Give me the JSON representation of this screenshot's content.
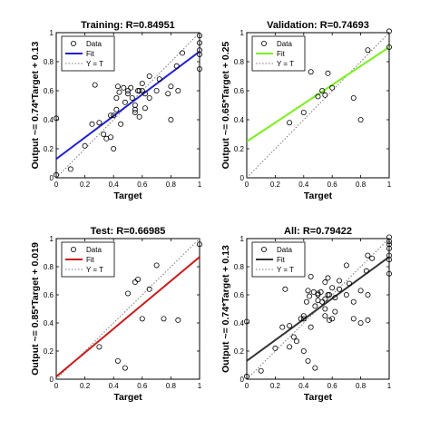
{
  "chart_data": [
    {
      "type": "scatter",
      "title": "Training: R=0.84951",
      "xlabel": "Target",
      "ylabel": "Output ~= 0.74*Target + 0.13",
      "xlim": [
        0,
        1
      ],
      "ylim": [
        0,
        1
      ],
      "xticks": [
        "0",
        "0.2",
        "0.4",
        "0.6",
        "0.8",
        "1"
      ],
      "yticks": [
        "0",
        "0.2",
        "0.4",
        "0.6",
        "0.8",
        "1"
      ],
      "grid": false,
      "legend_position": "top-left",
      "fit": {
        "slope": 0.74,
        "intercept": 0.13,
        "color": "#1f1fd0"
      },
      "legend": [
        {
          "label": "Data",
          "kind": "marker"
        },
        {
          "label": "Fit",
          "kind": "fit"
        },
        {
          "label": "Y = T",
          "kind": "identity"
        }
      ],
      "points": [
        [
          0.0,
          0.41
        ],
        [
          0.0,
          0.02
        ],
        [
          0.1,
          0.06
        ],
        [
          0.2,
          0.22
        ],
        [
          0.25,
          0.37
        ],
        [
          0.27,
          0.64
        ],
        [
          0.3,
          0.38
        ],
        [
          0.33,
          0.3
        ],
        [
          0.35,
          0.27
        ],
        [
          0.38,
          0.43
        ],
        [
          0.38,
          0.28
        ],
        [
          0.4,
          0.2
        ],
        [
          0.4,
          0.43
        ],
        [
          0.42,
          0.47
        ],
        [
          0.42,
          0.55
        ],
        [
          0.43,
          0.63
        ],
        [
          0.44,
          0.59
        ],
        [
          0.45,
          0.37
        ],
        [
          0.47,
          0.62
        ],
        [
          0.48,
          0.52
        ],
        [
          0.5,
          0.58
        ],
        [
          0.5,
          0.6
        ],
        [
          0.52,
          0.62
        ],
        [
          0.53,
          0.55
        ],
        [
          0.55,
          0.45
        ],
        [
          0.55,
          0.47
        ],
        [
          0.55,
          0.5
        ],
        [
          0.57,
          0.6
        ],
        [
          0.58,
          0.42
        ],
        [
          0.58,
          0.6
        ],
        [
          0.6,
          0.65
        ],
        [
          0.6,
          0.6
        ],
        [
          0.62,
          0.58
        ],
        [
          0.62,
          0.48
        ],
        [
          0.65,
          0.7
        ],
        [
          0.65,
          0.55
        ],
        [
          0.7,
          0.6
        ],
        [
          0.72,
          0.68
        ],
        [
          0.78,
          0.58
        ],
        [
          0.8,
          0.4
        ],
        [
          0.8,
          0.63
        ],
        [
          0.84,
          0.77
        ],
        [
          0.85,
          0.6
        ],
        [
          0.88,
          0.86
        ],
        [
          1.0,
          0.75
        ],
        [
          1.0,
          0.85
        ],
        [
          1.0,
          0.88
        ],
        [
          1.0,
          0.93
        ],
        [
          1.0,
          0.98
        ]
      ]
    },
    {
      "type": "scatter",
      "title": "Validation: R=0.74693",
      "xlabel": "Target",
      "ylabel": "Output ~= 0.65*Target + 0.25",
      "xlim": [
        0,
        1
      ],
      "ylim": [
        0,
        1
      ],
      "xticks": [
        "0",
        "0.2",
        "0.4",
        "0.6",
        "0.8",
        "1"
      ],
      "yticks": [
        "0",
        "0.2",
        "0.4",
        "0.6",
        "0.8",
        "1"
      ],
      "grid": false,
      "legend_position": "top-left",
      "fit": {
        "slope": 0.65,
        "intercept": 0.25,
        "color": "#7bef1e"
      },
      "legend": [
        {
          "label": "Data",
          "kind": "marker"
        },
        {
          "label": "Fit",
          "kind": "fit"
        },
        {
          "label": "Y = T",
          "kind": "identity"
        }
      ],
      "points": [
        [
          0.3,
          0.38
        ],
        [
          0.4,
          0.45
        ],
        [
          0.45,
          0.73
        ],
        [
          0.5,
          0.56
        ],
        [
          0.53,
          0.6
        ],
        [
          0.55,
          0.57
        ],
        [
          0.57,
          0.72
        ],
        [
          0.6,
          0.62
        ],
        [
          0.75,
          0.55
        ],
        [
          0.8,
          0.4
        ],
        [
          0.85,
          0.88
        ],
        [
          1.0,
          0.9
        ],
        [
          1.0,
          1.01
        ]
      ]
    },
    {
      "type": "scatter",
      "title": "Test: R=0.66985",
      "xlabel": "Target",
      "ylabel": "Output ~= 0.85*Target + 0.019",
      "xlim": [
        0,
        1
      ],
      "ylim": [
        0,
        1
      ],
      "xticks": [
        "0",
        "0.2",
        "0.4",
        "0.6",
        "0.8",
        "1"
      ],
      "yticks": [
        "0",
        "0.2",
        "0.4",
        "0.6",
        "0.8",
        "1"
      ],
      "grid": false,
      "legend_position": "top-left",
      "fit": {
        "slope": 0.85,
        "intercept": 0.019,
        "color": "#c81e1e"
      },
      "legend": [
        {
          "label": "Data",
          "kind": "marker"
        },
        {
          "label": "Fit",
          "kind": "fit"
        },
        {
          "label": "Y = T",
          "kind": "identity"
        }
      ],
      "points": [
        [
          0.3,
          0.23
        ],
        [
          0.43,
          0.13
        ],
        [
          0.48,
          0.08
        ],
        [
          0.5,
          0.61
        ],
        [
          0.55,
          0.69
        ],
        [
          0.57,
          0.71
        ],
        [
          0.6,
          0.43
        ],
        [
          0.65,
          0.64
        ],
        [
          0.7,
          0.81
        ],
        [
          0.75,
          0.43
        ],
        [
          0.85,
          0.42
        ],
        [
          1.0,
          0.96
        ]
      ]
    },
    {
      "type": "scatter",
      "title": "All: R=0.79422",
      "xlabel": "Target",
      "ylabel": "Output ~= 0.74*Target + 0.13",
      "xlim": [
        0,
        1
      ],
      "ylim": [
        0,
        1
      ],
      "xticks": [
        "0",
        "0.2",
        "0.4",
        "0.6",
        "0.8",
        "1"
      ],
      "yticks": [
        "0",
        "0.2",
        "0.4",
        "0.6",
        "0.8",
        "1"
      ],
      "grid": false,
      "legend_position": "top-left",
      "fit": {
        "slope": 0.74,
        "intercept": 0.13,
        "color": "#333333"
      },
      "legend": [
        {
          "label": "Data",
          "kind": "marker"
        },
        {
          "label": "Fit",
          "kind": "fit"
        },
        {
          "label": "Y = T",
          "kind": "identity"
        }
      ],
      "points": [
        [
          0.0,
          0.41
        ],
        [
          0.0,
          0.02
        ],
        [
          0.1,
          0.06
        ],
        [
          0.2,
          0.22
        ],
        [
          0.25,
          0.37
        ],
        [
          0.27,
          0.64
        ],
        [
          0.3,
          0.38
        ],
        [
          0.3,
          0.23
        ],
        [
          0.33,
          0.3
        ],
        [
          0.35,
          0.27
        ],
        [
          0.38,
          0.43
        ],
        [
          0.4,
          0.2
        ],
        [
          0.4,
          0.43
        ],
        [
          0.4,
          0.45
        ],
        [
          0.42,
          0.55
        ],
        [
          0.43,
          0.63
        ],
        [
          0.43,
          0.13
        ],
        [
          0.44,
          0.59
        ],
        [
          0.45,
          0.37
        ],
        [
          0.45,
          0.73
        ],
        [
          0.47,
          0.62
        ],
        [
          0.48,
          0.52
        ],
        [
          0.48,
          0.08
        ],
        [
          0.5,
          0.6
        ],
        [
          0.5,
          0.56
        ],
        [
          0.5,
          0.61
        ],
        [
          0.52,
          0.62
        ],
        [
          0.53,
          0.55
        ],
        [
          0.55,
          0.45
        ],
        [
          0.55,
          0.5
        ],
        [
          0.55,
          0.69
        ],
        [
          0.55,
          0.57
        ],
        [
          0.57,
          0.6
        ],
        [
          0.57,
          0.72
        ],
        [
          0.58,
          0.42
        ],
        [
          0.58,
          0.6
        ],
        [
          0.6,
          0.65
        ],
        [
          0.6,
          0.43
        ],
        [
          0.62,
          0.58
        ],
        [
          0.62,
          0.48
        ],
        [
          0.65,
          0.7
        ],
        [
          0.65,
          0.64
        ],
        [
          0.7,
          0.6
        ],
        [
          0.7,
          0.81
        ],
        [
          0.72,
          0.68
        ],
        [
          0.75,
          0.55
        ],
        [
          0.75,
          0.43
        ],
        [
          0.8,
          0.4
        ],
        [
          0.8,
          0.63
        ],
        [
          0.84,
          0.77
        ],
        [
          0.85,
          0.6
        ],
        [
          0.85,
          0.88
        ],
        [
          0.85,
          0.42
        ],
        [
          0.88,
          0.86
        ],
        [
          1.0,
          0.75
        ],
        [
          1.0,
          0.85
        ],
        [
          1.0,
          0.88
        ],
        [
          1.0,
          0.93
        ],
        [
          1.0,
          0.96
        ],
        [
          1.0,
          0.98
        ],
        [
          1.0,
          1.01
        ]
      ]
    }
  ]
}
